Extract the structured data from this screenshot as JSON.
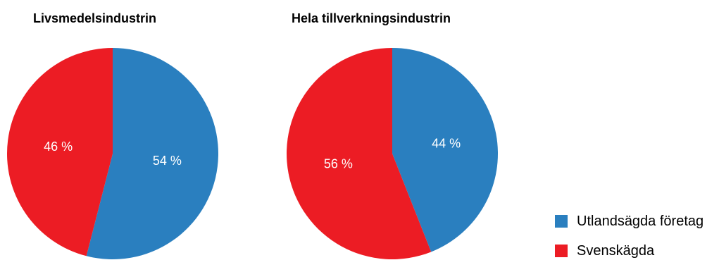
{
  "chart_data": [
    {
      "type": "pie",
      "title": "Livsmedelsindustrin",
      "categories": [
        "Utlandsägda företag",
        "Svenskägda"
      ],
      "values": [
        54,
        46
      ],
      "labels": [
        "54 %",
        "46 %"
      ],
      "colors": [
        "#2a7fbf",
        "#ec1c24"
      ]
    },
    {
      "type": "pie",
      "title": "Hela tillverkningsindustrin",
      "categories": [
        "Utlandsägda företag",
        "Svenskägda"
      ],
      "values": [
        44,
        56
      ],
      "labels": [
        "44 %",
        "56 %"
      ],
      "colors": [
        "#2a7fbf",
        "#ec1c24"
      ]
    }
  ],
  "legend": {
    "placement": "bottom-right",
    "items": [
      {
        "label": "Utlandsägda företag",
        "color": "#2a7fbf"
      },
      {
        "label": "Svenskägda",
        "color": "#ec1c24"
      }
    ]
  }
}
